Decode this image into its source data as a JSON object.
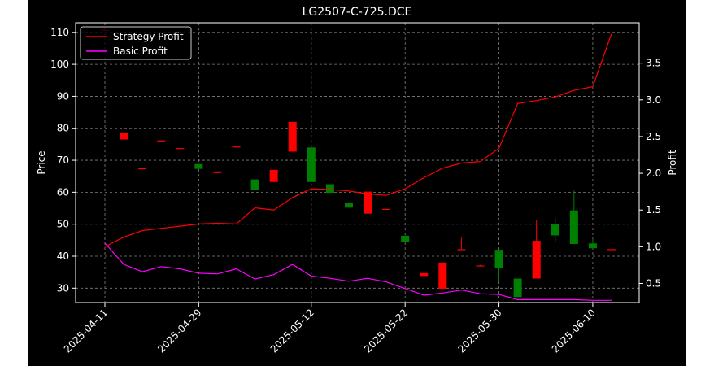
{
  "chart_data": {
    "type": "candlestick",
    "title": "LG2507-C-725.DCE",
    "ylabel_left": "Price",
    "ylabel_right": "Profit",
    "xlabel": "",
    "x_tick_labels": [
      "2025-04-11",
      "2025-04-29",
      "2025-05-12",
      "2025-05-22",
      "2025-05-30",
      "2025-06-10"
    ],
    "ylim_left": [
      25.5,
      113
    ],
    "ylim_right": [
      0.24,
      4.05
    ],
    "yticks_left": [
      30,
      40,
      50,
      60,
      70,
      80,
      90,
      100,
      110
    ],
    "yticks_right": [
      0.5,
      1.0,
      1.5,
      2.0,
      2.5,
      3.0,
      3.5
    ],
    "grid": true,
    "legend_position": "top-left",
    "colors": {
      "up": "#ff0000",
      "down": "#008000",
      "strategy": "#ff0000",
      "basic": "#ff00ff",
      "background": "#000000"
    },
    "candles": [
      {
        "open": 110.8,
        "high": 110.8,
        "low": 110.8,
        "close": 110.8
      },
      {
        "open": 76.5,
        "high": 78.5,
        "low": 76.5,
        "close": 78.5
      },
      {
        "open": 67.5,
        "high": 67.5,
        "low": 67.5,
        "close": 67.5
      },
      {
        "open": 76.2,
        "high": 76.2,
        "low": 76.2,
        "close": 76.2
      },
      {
        "open": 73.8,
        "high": 73.8,
        "low": 73.8,
        "close": 73.8
      },
      {
        "open": 68.8,
        "high": 68.8,
        "low": 67.3,
        "close": 67.3
      },
      {
        "open": 66.0,
        "high": 66.5,
        "low": 66.0,
        "close": 66.5
      },
      {
        "open": 74.3,
        "high": 74.3,
        "low": 74.3,
        "close": 74.3
      },
      {
        "open": 64.0,
        "high": 64.0,
        "low": 60.8,
        "close": 60.8
      },
      {
        "open": 63.2,
        "high": 67.0,
        "low": 63.2,
        "close": 67.0
      },
      {
        "open": 72.7,
        "high": 82.0,
        "low": 72.7,
        "close": 82.0
      },
      {
        "open": 74.0,
        "high": 74.0,
        "low": 63.2,
        "close": 63.2
      },
      {
        "open": 62.5,
        "high": 62.5,
        "low": 59.8,
        "close": 59.8
      },
      {
        "open": 56.8,
        "high": 56.8,
        "low": 55.2,
        "close": 55.2
      },
      {
        "open": 53.3,
        "high": 60.2,
        "low": 53.3,
        "close": 60.2
      },
      {
        "open": 54.8,
        "high": 54.8,
        "low": 54.8,
        "close": 54.8
      },
      {
        "open": 46.4,
        "high": 46.4,
        "low": 44.5,
        "close": 44.5
      },
      {
        "open": 33.8,
        "high": 35.3,
        "low": 33.8,
        "close": 34.7
      },
      {
        "open": 29.8,
        "high": 38.0,
        "low": 29.8,
        "close": 38.0
      },
      {
        "open": 42.2,
        "high": 45.8,
        "low": 42.2,
        "close": 42.2
      },
      {
        "open": 37.1,
        "high": 37.3,
        "low": 37.1,
        "close": 37.1
      },
      {
        "open": 42.0,
        "high": 42.0,
        "low": 32.2,
        "close": 36.2
      },
      {
        "open": 33.0,
        "high": 33.0,
        "low": 27.2,
        "close": 27.2
      },
      {
        "open": 33.0,
        "high": 51.3,
        "low": 33.0,
        "close": 44.8
      },
      {
        "open": 50.0,
        "high": 52.0,
        "low": 44.5,
        "close": 46.5
      },
      {
        "open": 54.3,
        "high": 60.5,
        "low": 43.8,
        "close": 43.8
      },
      {
        "open": 44.0,
        "high": 45.5,
        "low": 42.5,
        "close": 42.5
      },
      {
        "open": 42.2,
        "high": 42.2,
        "low": 42.2,
        "close": 42.2
      }
    ],
    "series": [
      {
        "name": "Strategy Profit",
        "values": [
          1.0,
          1.13,
          1.22,
          1.25,
          1.28,
          1.31,
          1.32,
          1.31,
          1.53,
          1.5,
          1.67,
          1.79,
          1.78,
          1.76,
          1.72,
          1.7,
          1.79,
          1.94,
          2.07,
          2.14,
          2.16,
          2.34,
          2.95,
          2.99,
          3.04,
          3.13,
          3.18,
          3.9
        ]
      },
      {
        "name": "Basic Profit",
        "values": [
          1.05,
          0.76,
          0.66,
          0.73,
          0.7,
          0.64,
          0.63,
          0.7,
          0.56,
          0.62,
          0.76,
          0.6,
          0.57,
          0.53,
          0.57,
          0.52,
          0.43,
          0.34,
          0.37,
          0.41,
          0.36,
          0.35,
          0.28,
          0.28,
          0.28,
          0.28,
          0.27,
          0.27
        ]
      }
    ]
  }
}
